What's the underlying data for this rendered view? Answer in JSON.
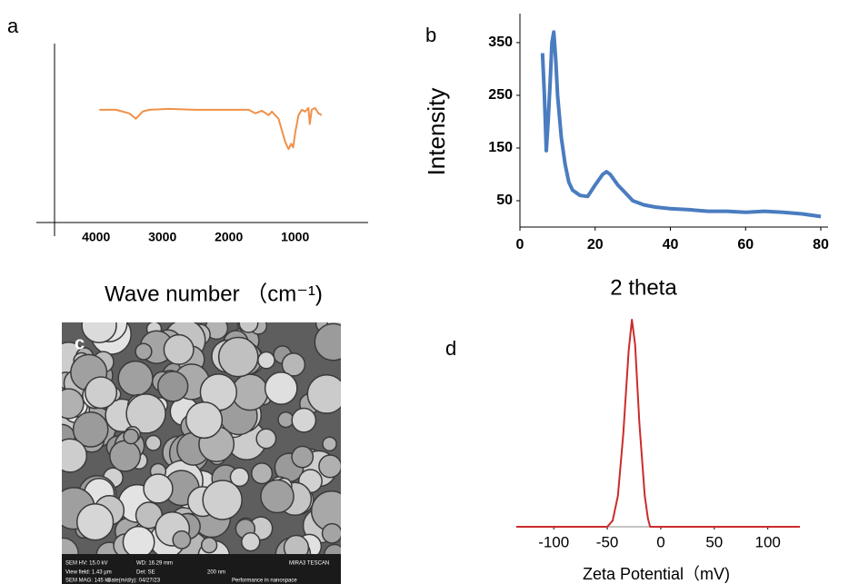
{
  "chart_data": [
    {
      "type": "line",
      "panel_label": "a",
      "x_label": "Wave number （cm⁻¹)",
      "x": [
        3950,
        3700,
        3500,
        3400,
        3300,
        3200,
        2900,
        2500,
        2000,
        1700,
        1600,
        1500,
        1400,
        1350,
        1250,
        1150,
        1100,
        1060,
        1030,
        1000,
        950,
        900,
        850,
        800,
        780,
        750,
        700,
        650,
        600
      ],
      "values": [
        63,
        63,
        61,
        58,
        62,
        63,
        63.5,
        63,
        63,
        63,
        61,
        62.5,
        60,
        62,
        58,
        45,
        41,
        44,
        42,
        50,
        60,
        63,
        62,
        64,
        55,
        63,
        64,
        61,
        60
      ],
      "color": "#f0914a",
      "xlim": [
        4900,
        -100
      ],
      "xticks": [
        4000,
        3000,
        2000,
        1000
      ],
      "ylim": [
        0,
        100
      ]
    },
    {
      "type": "line",
      "panel_label": "b",
      "x_label": "2 theta",
      "y_label": "Intensity",
      "x": [
        6,
        6.5,
        7,
        7.5,
        8,
        8.5,
        9,
        9.5,
        10,
        11,
        12,
        13,
        14,
        15,
        16,
        18,
        20,
        22,
        23,
        24,
        26,
        28,
        30,
        33,
        36,
        40,
        45,
        50,
        55,
        60,
        65,
        70,
        75,
        80
      ],
      "values": [
        330,
        250,
        145,
        200,
        270,
        350,
        370,
        320,
        250,
        170,
        120,
        85,
        70,
        65,
        60,
        58,
        80,
        100,
        105,
        100,
        80,
        65,
        50,
        42,
        38,
        35,
        33,
        30,
        30,
        28,
        30,
        28,
        25,
        20
      ],
      "color": "#4a7cc0",
      "xlim": [
        0,
        80
      ],
      "xticks": [
        0,
        20,
        40,
        60,
        80
      ],
      "ylim": [
        0,
        405
      ],
      "yticks": [
        50,
        150,
        250,
        350
      ]
    },
    {
      "type": "line",
      "panel_label": "d",
      "x_label": "Zeta Potential（mV)",
      "x": [
        -135,
        -50,
        -45,
        -40,
        -35,
        -30,
        -27,
        -24,
        -20,
        -15,
        -12,
        -10,
        130
      ],
      "values": [
        0,
        0,
        3,
        15,
        45,
        85,
        100,
        88,
        50,
        15,
        4,
        0,
        0
      ],
      "color": "#cc2b2b",
      "xlim": [
        -135,
        130
      ],
      "xticks": [
        -100,
        -50,
        0,
        50,
        100
      ],
      "ylim": [
        0,
        100
      ]
    }
  ],
  "sem_image": {
    "panel_label": "c",
    "info": [
      "SEM HV: 15.0 kV",
      "WD: 16.29 mm",
      "MIRA3 TESCAN",
      "View field: 1.43 μm",
      "Det: SE",
      "200 nm",
      "SEM MAG: 145 kx",
      "Date(m/d/y): 04/27/23",
      "Performance in nanospace"
    ]
  }
}
